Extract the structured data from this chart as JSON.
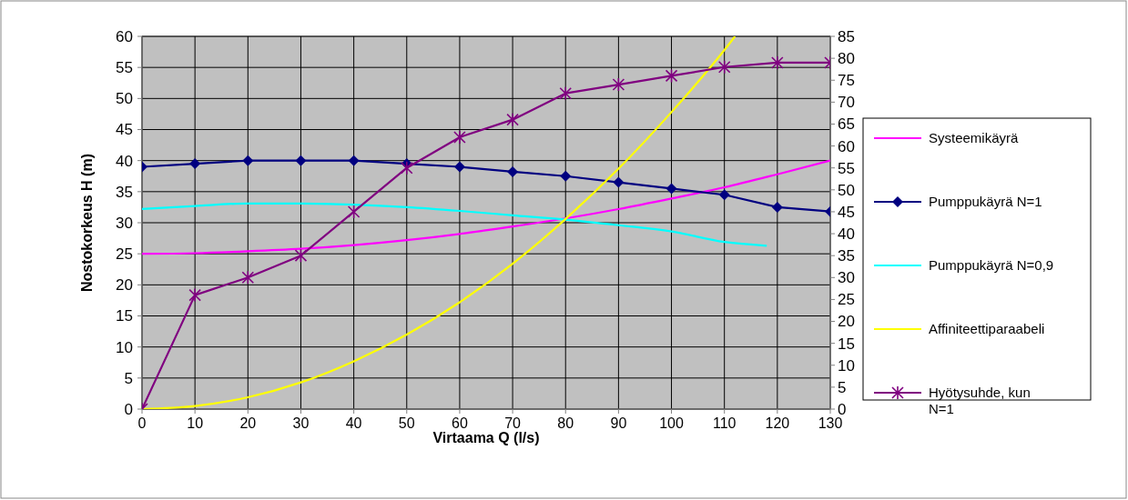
{
  "chart_data": {
    "type": "line",
    "xlabel": "Virtaama Q (l/s)",
    "ylabel": "Nostokorkeus H (m)",
    "xlim": [
      0,
      130
    ],
    "xticks": [
      0,
      10,
      20,
      30,
      40,
      50,
      60,
      70,
      80,
      90,
      100,
      110,
      120,
      130
    ],
    "ylim": [
      0,
      60
    ],
    "yticks": [
      0,
      5,
      10,
      15,
      20,
      25,
      30,
      35,
      40,
      45,
      50,
      55,
      60
    ],
    "y2lim": [
      0,
      85
    ],
    "y2ticks": [
      0,
      5,
      10,
      15,
      20,
      25,
      30,
      35,
      40,
      45,
      50,
      55,
      60,
      65,
      70,
      75,
      80,
      85
    ],
    "grid": true,
    "legend": "right",
    "series": [
      {
        "name": "Systeemikäyrä",
        "color": "#ff00ff",
        "marker": "none",
        "x": [
          0,
          10,
          20,
          30,
          40,
          50,
          60,
          70,
          80,
          90,
          100,
          110,
          120,
          130
        ],
        "values": [
          25,
          25.1,
          25.4,
          25.8,
          26.4,
          27.2,
          28.2,
          29.4,
          30.7,
          32.2,
          33.9,
          35.7,
          37.8,
          40
        ]
      },
      {
        "name": "Pumppukäyrä N=1",
        "color": "#000080",
        "marker": "diamond",
        "x": [
          0,
          10,
          20,
          30,
          40,
          50,
          60,
          70,
          80,
          90,
          100,
          110,
          120,
          130
        ],
        "values": [
          39,
          39.5,
          40,
          40,
          40,
          39.5,
          39,
          38.2,
          37.5,
          36.5,
          35.5,
          34.5,
          32.5,
          31.8
        ]
      },
      {
        "name": "Pumppukäyrä N=0,9",
        "color": "#00ffff",
        "marker": "none",
        "x": [
          0,
          10,
          20,
          30,
          40,
          50,
          60,
          70,
          80,
          90,
          100,
          110,
          118
        ],
        "values": [
          32.2,
          32.7,
          33.1,
          33.1,
          32.9,
          32.5,
          31.9,
          31.2,
          30.5,
          29.6,
          28.6,
          26.9,
          26.3
        ]
      },
      {
        "name": "Affiniteettiparaabeli",
        "color": "#ffff00",
        "marker": "none",
        "x": [
          0,
          10,
          20,
          30,
          40,
          50,
          60,
          70,
          80,
          90,
          100,
          110,
          112
        ],
        "values": [
          0,
          0.5,
          1.9,
          4.3,
          7.7,
          12,
          17.2,
          23.4,
          30.6,
          38.7,
          47.8,
          57.8,
          60
        ]
      },
      {
        "name": "Hyötysuhde, kun N=1",
        "color": "#800080",
        "marker": "cross",
        "axis": "y2",
        "x": [
          0,
          10,
          20,
          30,
          40,
          50,
          60,
          70,
          80,
          90,
          100,
          110,
          120,
          130
        ],
        "values": [
          0,
          26,
          30,
          35,
          45,
          55,
          62,
          66,
          72,
          74,
          76,
          78,
          79,
          79
        ]
      }
    ]
  }
}
